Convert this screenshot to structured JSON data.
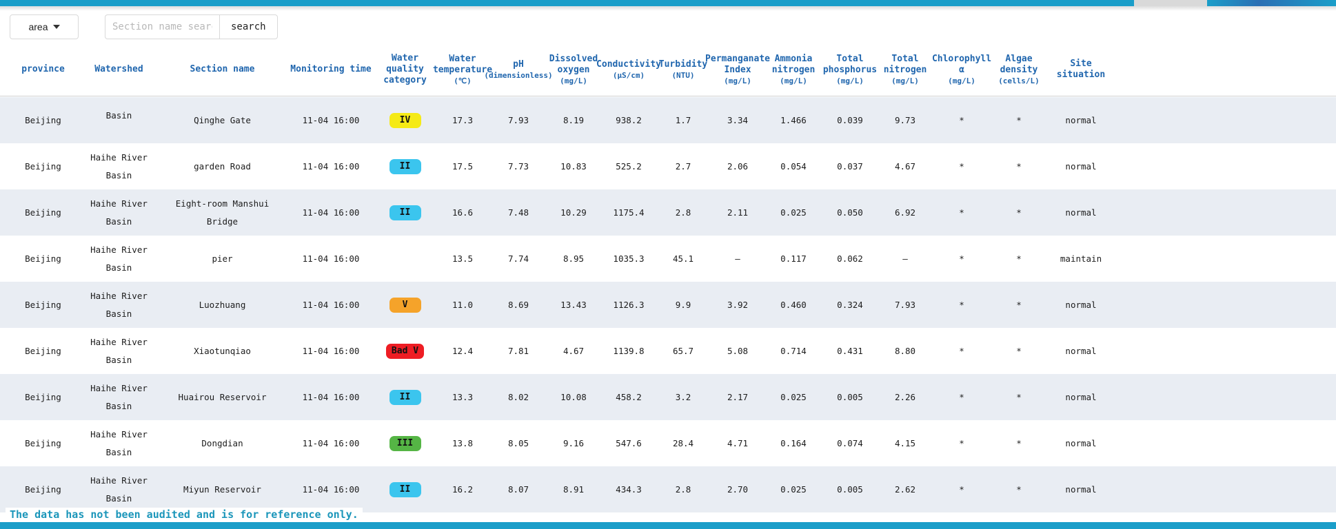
{
  "toolbar": {
    "area_label": "area",
    "search_placeholder": "Section name search",
    "search_button": "search"
  },
  "columns": [
    {
      "id": "province",
      "label": "province",
      "unit": ""
    },
    {
      "id": "watershed",
      "label": "Watershed",
      "unit": ""
    },
    {
      "id": "section-name",
      "label": "Section name",
      "unit": ""
    },
    {
      "id": "monitoring-time",
      "label": "Monitoring time",
      "unit": ""
    },
    {
      "id": "water-quality-category",
      "label": "Water quality category",
      "unit": ""
    },
    {
      "id": "water-temperature",
      "label": "Water temperature",
      "unit": "(℃)"
    },
    {
      "id": "ph",
      "label": "pH",
      "unit": "(dimensionless)"
    },
    {
      "id": "dissolved-oxygen",
      "label": "Dissolved oxygen",
      "unit": "(mg/L)"
    },
    {
      "id": "conductivity",
      "label": "Conductivity",
      "unit": "(μS/cm)"
    },
    {
      "id": "turbidity",
      "label": "Turbidity",
      "unit": "(NTU)"
    },
    {
      "id": "permanganate-index",
      "label": "Permanganate Index",
      "unit": "(mg/L)"
    },
    {
      "id": "ammonia-nitrogen",
      "label": "Ammonia nitrogen",
      "unit": "(mg/L)"
    },
    {
      "id": "total-phosphorus",
      "label": "Total phosphorus",
      "unit": "(mg/L)"
    },
    {
      "id": "total-nitrogen",
      "label": "Total nitrogen",
      "unit": "(mg/L)"
    },
    {
      "id": "chlorophyll-a",
      "label": "Chlorophyll α",
      "unit": "(mg/L)"
    },
    {
      "id": "algae-density",
      "label": "Algae density",
      "unit": "(cells/L)"
    },
    {
      "id": "site-situation",
      "label": "Site situation",
      "unit": ""
    }
  ],
  "badge_colors": {
    "II": "#3bc5ee",
    "III": "#55b545",
    "IV": "#f5ea16",
    "V": "#f5a32a",
    "Bad V": "#ee1d24"
  },
  "rows": [
    {
      "province": "Beijing",
      "watershed": "Basin",
      "section": "Qinghe Gate",
      "time": "11-04 16:00",
      "category": "IV",
      "values": [
        "17.3",
        "7.93",
        "8.19",
        "938.2",
        "1.7",
        "3.34",
        "1.466",
        "0.039",
        "9.73",
        "*",
        "*"
      ],
      "site": "normal"
    },
    {
      "province": "Beijing",
      "watershed": "Haihe River Basin",
      "section": "garden Road",
      "time": "11-04 16:00",
      "category": "II",
      "values": [
        "17.5",
        "7.73",
        "10.83",
        "525.2",
        "2.7",
        "2.06",
        "0.054",
        "0.037",
        "4.67",
        "*",
        "*"
      ],
      "site": "normal"
    },
    {
      "province": "Beijing",
      "watershed": "Haihe River Basin",
      "section": "Eight-room Manshui Bridge",
      "time": "11-04 16:00",
      "category": "II",
      "values": [
        "16.6",
        "7.48",
        "10.29",
        "1175.4",
        "2.8",
        "2.11",
        "0.025",
        "0.050",
        "6.92",
        "*",
        "*"
      ],
      "site": "normal"
    },
    {
      "province": "Beijing",
      "watershed": "Haihe River Basin",
      "section": "pier",
      "time": "11-04 16:00",
      "category": "",
      "values": [
        "13.5",
        "7.74",
        "8.95",
        "1035.3",
        "45.1",
        "–",
        "0.117",
        "0.062",
        "–",
        "*",
        "*"
      ],
      "site": "maintain"
    },
    {
      "province": "Beijing",
      "watershed": "Haihe River Basin",
      "section": "Luozhuang",
      "time": "11-04 16:00",
      "category": "V",
      "values": [
        "11.0",
        "8.69",
        "13.43",
        "1126.3",
        "9.9",
        "3.92",
        "0.460",
        "0.324",
        "7.93",
        "*",
        "*"
      ],
      "site": "normal"
    },
    {
      "province": "Beijing",
      "watershed": "Haihe River Basin",
      "section": "Xiaotunqiao",
      "time": "11-04 16:00",
      "category": "Bad V",
      "values": [
        "12.4",
        "7.81",
        "4.67",
        "1139.8",
        "65.7",
        "5.08",
        "0.714",
        "0.431",
        "8.80",
        "*",
        "*"
      ],
      "site": "normal"
    },
    {
      "province": "Beijing",
      "watershed": "Haihe River Basin",
      "section": "Huairou Reservoir",
      "time": "11-04 16:00",
      "category": "II",
      "values": [
        "13.3",
        "8.02",
        "10.08",
        "458.2",
        "3.2",
        "2.17",
        "0.025",
        "0.005",
        "2.26",
        "*",
        "*"
      ],
      "site": "normal"
    },
    {
      "province": "Beijing",
      "watershed": "Haihe River Basin",
      "section": "Dongdian",
      "time": "11-04 16:00",
      "category": "III",
      "values": [
        "13.8",
        "8.05",
        "9.16",
        "547.6",
        "28.4",
        "4.71",
        "0.164",
        "0.074",
        "4.15",
        "*",
        "*"
      ],
      "site": "normal"
    },
    {
      "province": "Beijing",
      "watershed": "Haihe River Basin",
      "section": "Miyun Reservoir",
      "time": "11-04 16:00",
      "category": "II",
      "values": [
        "16.2",
        "8.07",
        "8.91",
        "434.3",
        "2.8",
        "2.70",
        "0.025",
        "0.005",
        "2.62",
        "*",
        "*"
      ],
      "site": "normal"
    }
  ],
  "footer": {
    "notice": "The data has not been audited and is for reference only."
  }
}
